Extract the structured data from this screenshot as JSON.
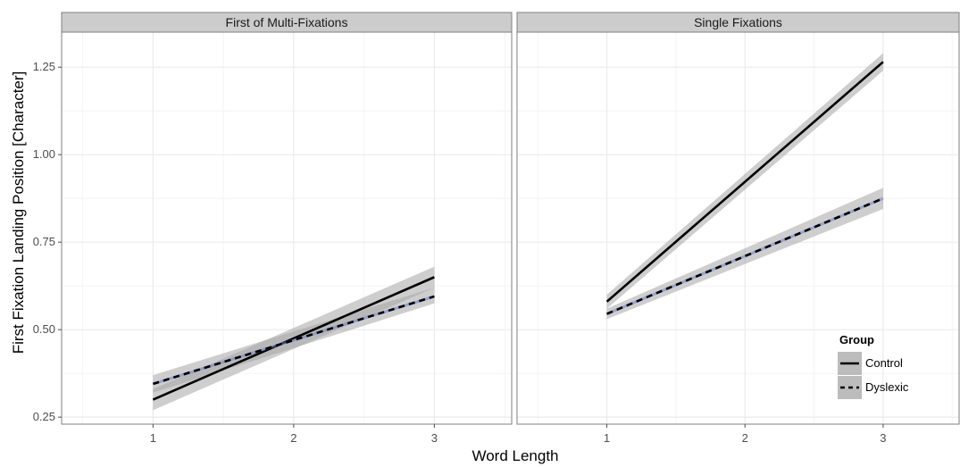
{
  "chart_data": {
    "type": "line",
    "xlabel": "Word Length",
    "ylabel": "First Fixation Landing Position [Character]",
    "x_ticks": [
      "1",
      "2",
      "3"
    ],
    "y_ticks": [
      "0.25",
      "0.50",
      "0.75",
      "1.00",
      "1.25"
    ],
    "xlim": [
      0.35,
      3.55
    ],
    "ylim": [
      0.23,
      1.35
    ],
    "grid": true,
    "legend": {
      "title": "Group",
      "position": "bottom-right",
      "entries": [
        {
          "name": "Control",
          "linetype": "solid"
        },
        {
          "name": "Dyslexic",
          "linetype": "dashed"
        }
      ]
    },
    "colors": {
      "panel_bg": "#ffffff",
      "strip_bg": "#cccccc",
      "border": "#7f7f7f",
      "grid": "#ebebeb",
      "ribbon": "#a6a6a6",
      "line": "#000000",
      "dash_highlight": "#6a7fd0"
    },
    "panels": [
      {
        "title": "First of Multi-Fixations",
        "series": [
          {
            "name": "Control",
            "x": [
              1,
              3
            ],
            "y": [
              0.3,
              0.65
            ],
            "lower": [
              0.27,
              0.62
            ],
            "upper": [
              0.33,
              0.68
            ]
          },
          {
            "name": "Dyslexic",
            "x": [
              1,
              3
            ],
            "y": [
              0.345,
              0.595
            ],
            "lower": [
              0.32,
              0.575
            ],
            "upper": [
              0.37,
              0.62
            ]
          }
        ]
      },
      {
        "title": "Single Fixations",
        "series": [
          {
            "name": "Control",
            "x": [
              1,
              3
            ],
            "y": [
              0.58,
              1.265
            ],
            "lower": [
              0.56,
              1.24
            ],
            "upper": [
              0.6,
              1.29
            ]
          },
          {
            "name": "Dyslexic",
            "x": [
              1,
              3
            ],
            "y": [
              0.545,
              0.875
            ],
            "lower": [
              0.53,
              0.845
            ],
            "upper": [
              0.56,
              0.905
            ]
          }
        ]
      }
    ]
  }
}
